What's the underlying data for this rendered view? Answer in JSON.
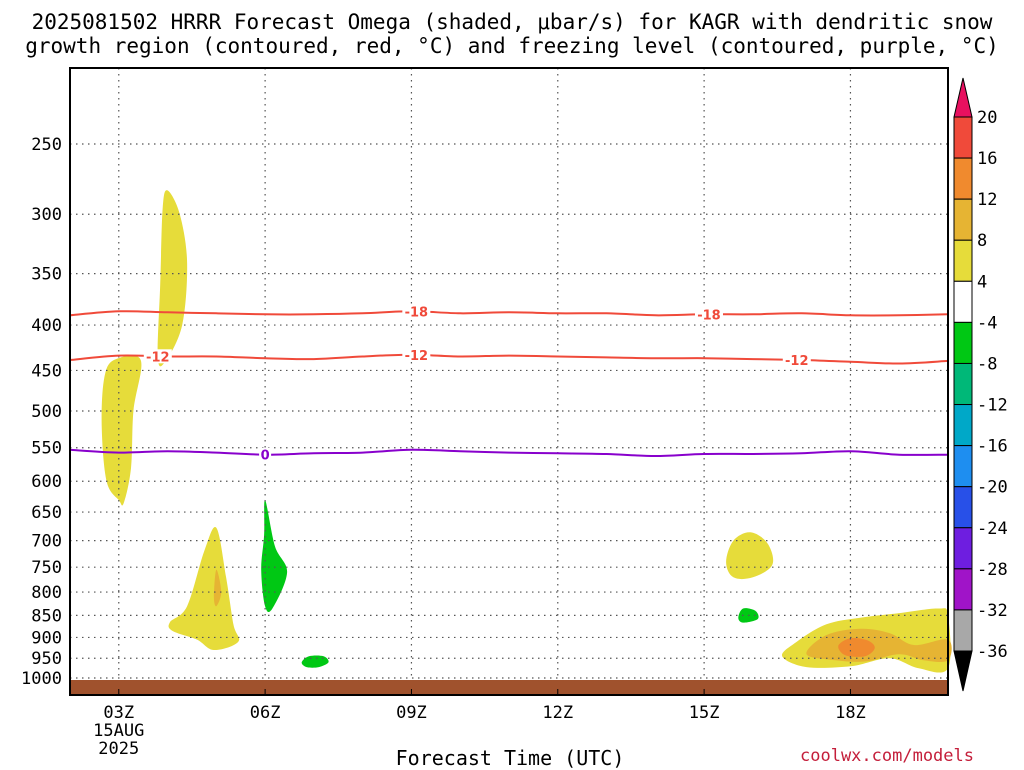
{
  "title_line1": "2025081502 HRRR Forecast Omega (shaded, μbar/s) for KAGR with dendritic snow",
  "title_line2": "growth region (contoured, red, °C) and freezing level (contoured, purple, °C)",
  "xlabel": "Forecast Time (UTC)",
  "credit": "coolwx.com/models",
  "chart_data": {
    "type": "heatmap",
    "title": "2025081502 HRRR Forecast Omega (shaded, μbar/s) for KAGR with dendritic snow growth region (contoured, red, °C) and freezing level (contoured, purple, °C)",
    "xlabel": "Forecast Time (UTC)",
    "ylabel": "",
    "x_unit": "forecast hour (UTC)",
    "xlim": [
      2,
      20
    ],
    "y_axis": "pressure (hPa), inverted",
    "ylim": [
      1000,
      200
    ],
    "grid": true,
    "x_ticks": [
      {
        "value": 3,
        "label": "03Z",
        "sub1": "15AUG",
        "sub2": "2025"
      },
      {
        "value": 6,
        "label": "06Z"
      },
      {
        "value": 9,
        "label": "09Z"
      },
      {
        "value": 12,
        "label": "12Z"
      },
      {
        "value": 15,
        "label": "15Z"
      },
      {
        "value": 18,
        "label": "18Z"
      }
    ],
    "y_ticks": [
      250,
      300,
      350,
      400,
      450,
      500,
      550,
      600,
      650,
      700,
      750,
      800,
      850,
      900,
      950,
      1000
    ],
    "colorbar": {
      "levels": [
        20,
        16,
        12,
        8,
        4,
        -4,
        -8,
        -12,
        -16,
        -20,
        -24,
        -28,
        -32,
        -36
      ],
      "colors": [
        "#e8105f",
        "#f04a3a",
        "#f08a2e",
        "#e6b433",
        "#e6dc3a",
        "#ffffff",
        "#00c814",
        "#00b878",
        "#00a8c8",
        "#1e8ef0",
        "#2850e8",
        "#6e1ee0",
        "#a014c8",
        "#a8a8a8",
        "#000000"
      ]
    },
    "contours": [
      {
        "name": "-18",
        "color": "#f04a3a",
        "points": [
          [
            2,
            390
          ],
          [
            3,
            386
          ],
          [
            4,
            387
          ],
          [
            5,
            388
          ],
          [
            6,
            389
          ],
          [
            7,
            389
          ],
          [
            8,
            388
          ],
          [
            9,
            386
          ],
          [
            10,
            388
          ],
          [
            11,
            387
          ],
          [
            12,
            388
          ],
          [
            13,
            388
          ],
          [
            14,
            390
          ],
          [
            15,
            389
          ],
          [
            16,
            389
          ],
          [
            17,
            388
          ],
          [
            18,
            390
          ],
          [
            19,
            390
          ],
          [
            20,
            389
          ]
        ],
        "labels": [
          9.1,
          15.1
        ]
      },
      {
        "name": "-12",
        "color": "#f04a3a",
        "points": [
          [
            2,
            438
          ],
          [
            3,
            433
          ],
          [
            4,
            434
          ],
          [
            5,
            434
          ],
          [
            6,
            436
          ],
          [
            7,
            437
          ],
          [
            8,
            434
          ],
          [
            9,
            432
          ],
          [
            10,
            434
          ],
          [
            11,
            433
          ],
          [
            12,
            434
          ],
          [
            13,
            435
          ],
          [
            14,
            436
          ],
          [
            15,
            436
          ],
          [
            16,
            437
          ],
          [
            17,
            438
          ],
          [
            18,
            440
          ],
          [
            19,
            442
          ],
          [
            20,
            439
          ]
        ],
        "labels": [
          3.8,
          9.1,
          16.9
        ]
      },
      {
        "name": "0",
        "color": "#8800cc",
        "points": [
          [
            2,
            553
          ],
          [
            3,
            557
          ],
          [
            4,
            555
          ],
          [
            5,
            557
          ],
          [
            6,
            560
          ],
          [
            7,
            558
          ],
          [
            8,
            557
          ],
          [
            9,
            553
          ],
          [
            10,
            555
          ],
          [
            11,
            557
          ],
          [
            12,
            558
          ],
          [
            13,
            559
          ],
          [
            14,
            562
          ],
          [
            15,
            559
          ],
          [
            16,
            559
          ],
          [
            17,
            558
          ],
          [
            18,
            555
          ],
          [
            19,
            560
          ],
          [
            20,
            560
          ]
        ],
        "labels": [
          6.0
        ]
      }
    ],
    "shaded_regions": [
      {
        "value": 4,
        "color": "#e6dc3a",
        "points": [
          [
            3.0,
            630
          ],
          [
            2.75,
            600
          ],
          [
            2.65,
            520
          ],
          [
            2.7,
            460
          ],
          [
            2.9,
            438
          ],
          [
            3.45,
            438
          ],
          [
            3.3,
            500
          ],
          [
            3.25,
            580
          ],
          [
            3.1,
            635
          ]
        ]
      },
      {
        "value": 4,
        "color": "#e6dc3a",
        "points": [
          [
            3.8,
            435
          ],
          [
            3.85,
            360
          ],
          [
            3.9,
            295
          ],
          [
            4.0,
            282
          ],
          [
            4.25,
            300
          ],
          [
            4.4,
            340
          ],
          [
            4.3,
            400
          ],
          [
            3.95,
            440
          ]
        ]
      },
      {
        "value": 4,
        "color": "#e6dc3a",
        "points": [
          [
            4.05,
            865
          ],
          [
            4.4,
            830
          ],
          [
            4.75,
            720
          ],
          [
            5.0,
            677
          ],
          [
            5.2,
            770
          ],
          [
            5.35,
            870
          ],
          [
            5.45,
            910
          ],
          [
            4.95,
            930
          ],
          [
            4.6,
            905
          ],
          [
            4.1,
            885
          ]
        ]
      },
      {
        "value": 8,
        "color": "#e6b433",
        "points": [
          [
            4.95,
            810
          ],
          [
            5.0,
            755
          ],
          [
            5.1,
            800
          ],
          [
            5.0,
            830
          ]
        ]
      },
      {
        "value": -4,
        "color": "#00c814",
        "points": [
          [
            6.0,
            830
          ],
          [
            5.92,
            755
          ],
          [
            5.98,
            690
          ],
          [
            6.0,
            630
          ],
          [
            6.2,
            710
          ],
          [
            6.45,
            760
          ],
          [
            6.15,
            835
          ]
        ]
      },
      {
        "value": -4,
        "color": "#00c814",
        "points": [
          [
            6.75,
            960
          ],
          [
            6.9,
            945
          ],
          [
            7.2,
            945
          ],
          [
            7.3,
            960
          ],
          [
            7.1,
            972
          ],
          [
            6.85,
            972
          ]
        ]
      },
      {
        "value": 4,
        "color": "#e6dc3a",
        "points": [
          [
            15.45,
            740
          ],
          [
            15.6,
            700
          ],
          [
            15.95,
            685
          ],
          [
            16.3,
            705
          ],
          [
            16.4,
            745
          ],
          [
            16.0,
            770
          ],
          [
            15.6,
            770
          ]
        ]
      },
      {
        "value": -4,
        "color": "#00c814",
        "points": [
          [
            15.7,
            855
          ],
          [
            15.8,
            835
          ],
          [
            16.05,
            840
          ],
          [
            16.1,
            858
          ],
          [
            15.8,
            866
          ]
        ]
      },
      {
        "value": 4,
        "color": "#e6dc3a",
        "points": [
          [
            16.6,
            945
          ],
          [
            16.9,
            910
          ],
          [
            17.5,
            870
          ],
          [
            18.2,
            855
          ],
          [
            19.0,
            845
          ],
          [
            19.8,
            835
          ],
          [
            20,
            850
          ],
          [
            20,
            975
          ],
          [
            19.4,
            975
          ],
          [
            18.8,
            950
          ],
          [
            18.0,
            970
          ],
          [
            17.1,
            972
          ]
        ]
      },
      {
        "value": 8,
        "color": "#e6b433",
        "points": [
          [
            17.1,
            940
          ],
          [
            17.5,
            895
          ],
          [
            18.2,
            880
          ],
          [
            18.8,
            890
          ],
          [
            19.3,
            918
          ],
          [
            20,
            905
          ],
          [
            20,
            955
          ],
          [
            19.5,
            955
          ],
          [
            19.0,
            940
          ],
          [
            18.3,
            958
          ],
          [
            17.7,
            955
          ]
        ]
      },
      {
        "value": 12,
        "color": "#f08a2e",
        "points": [
          [
            17.75,
            920
          ],
          [
            18.0,
            902
          ],
          [
            18.35,
            907
          ],
          [
            18.5,
            925
          ],
          [
            18.3,
            945
          ],
          [
            17.9,
            943
          ]
        ]
      }
    ],
    "surface_color": "#a0522d"
  }
}
